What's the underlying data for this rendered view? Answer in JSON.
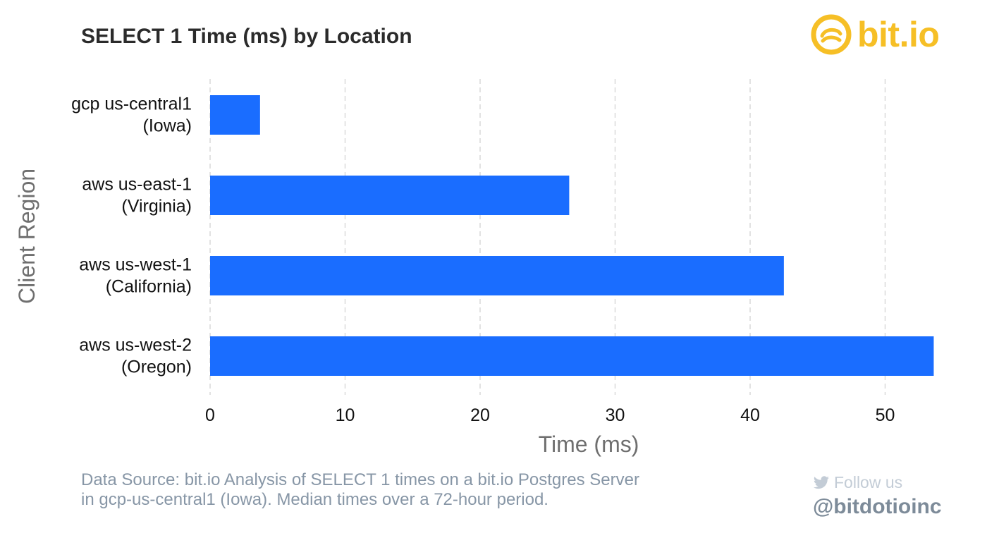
{
  "header": {
    "title": "SELECT 1 Time (ms) by Location"
  },
  "brand": {
    "name": "bit.io",
    "logo_icon": "bitio-swirl-icon",
    "color": "#f6bf26"
  },
  "chart_data": {
    "type": "bar",
    "orientation": "horizontal",
    "categories": [
      [
        "gcp us-central1",
        "(Iowa)"
      ],
      [
        "aws us-east-1",
        "(Virginia)"
      ],
      [
        "aws us-west-1",
        "(California)"
      ],
      [
        "aws us-west-2",
        "(Oregon)"
      ]
    ],
    "values": [
      3.7,
      26.6,
      42.5,
      53.6
    ],
    "xlabel": "Time (ms)",
    "ylabel": "Client Region",
    "xlim": [
      0,
      54
    ],
    "xticks": [
      0,
      10,
      20,
      30,
      40,
      50
    ],
    "grid": "vertical dashed",
    "bar_color": "#1a6dff"
  },
  "footer": {
    "source_line1": "Data Source: bit.io Analysis of SELECT 1 times on a bit.io Postgres Server",
    "source_line2": "in gcp-us-central1 (Iowa). Median times over a 72-hour period.",
    "follow_label": "Follow us",
    "follow_icon": "twitter-bird-icon",
    "handle": "@bitdotioinc"
  }
}
